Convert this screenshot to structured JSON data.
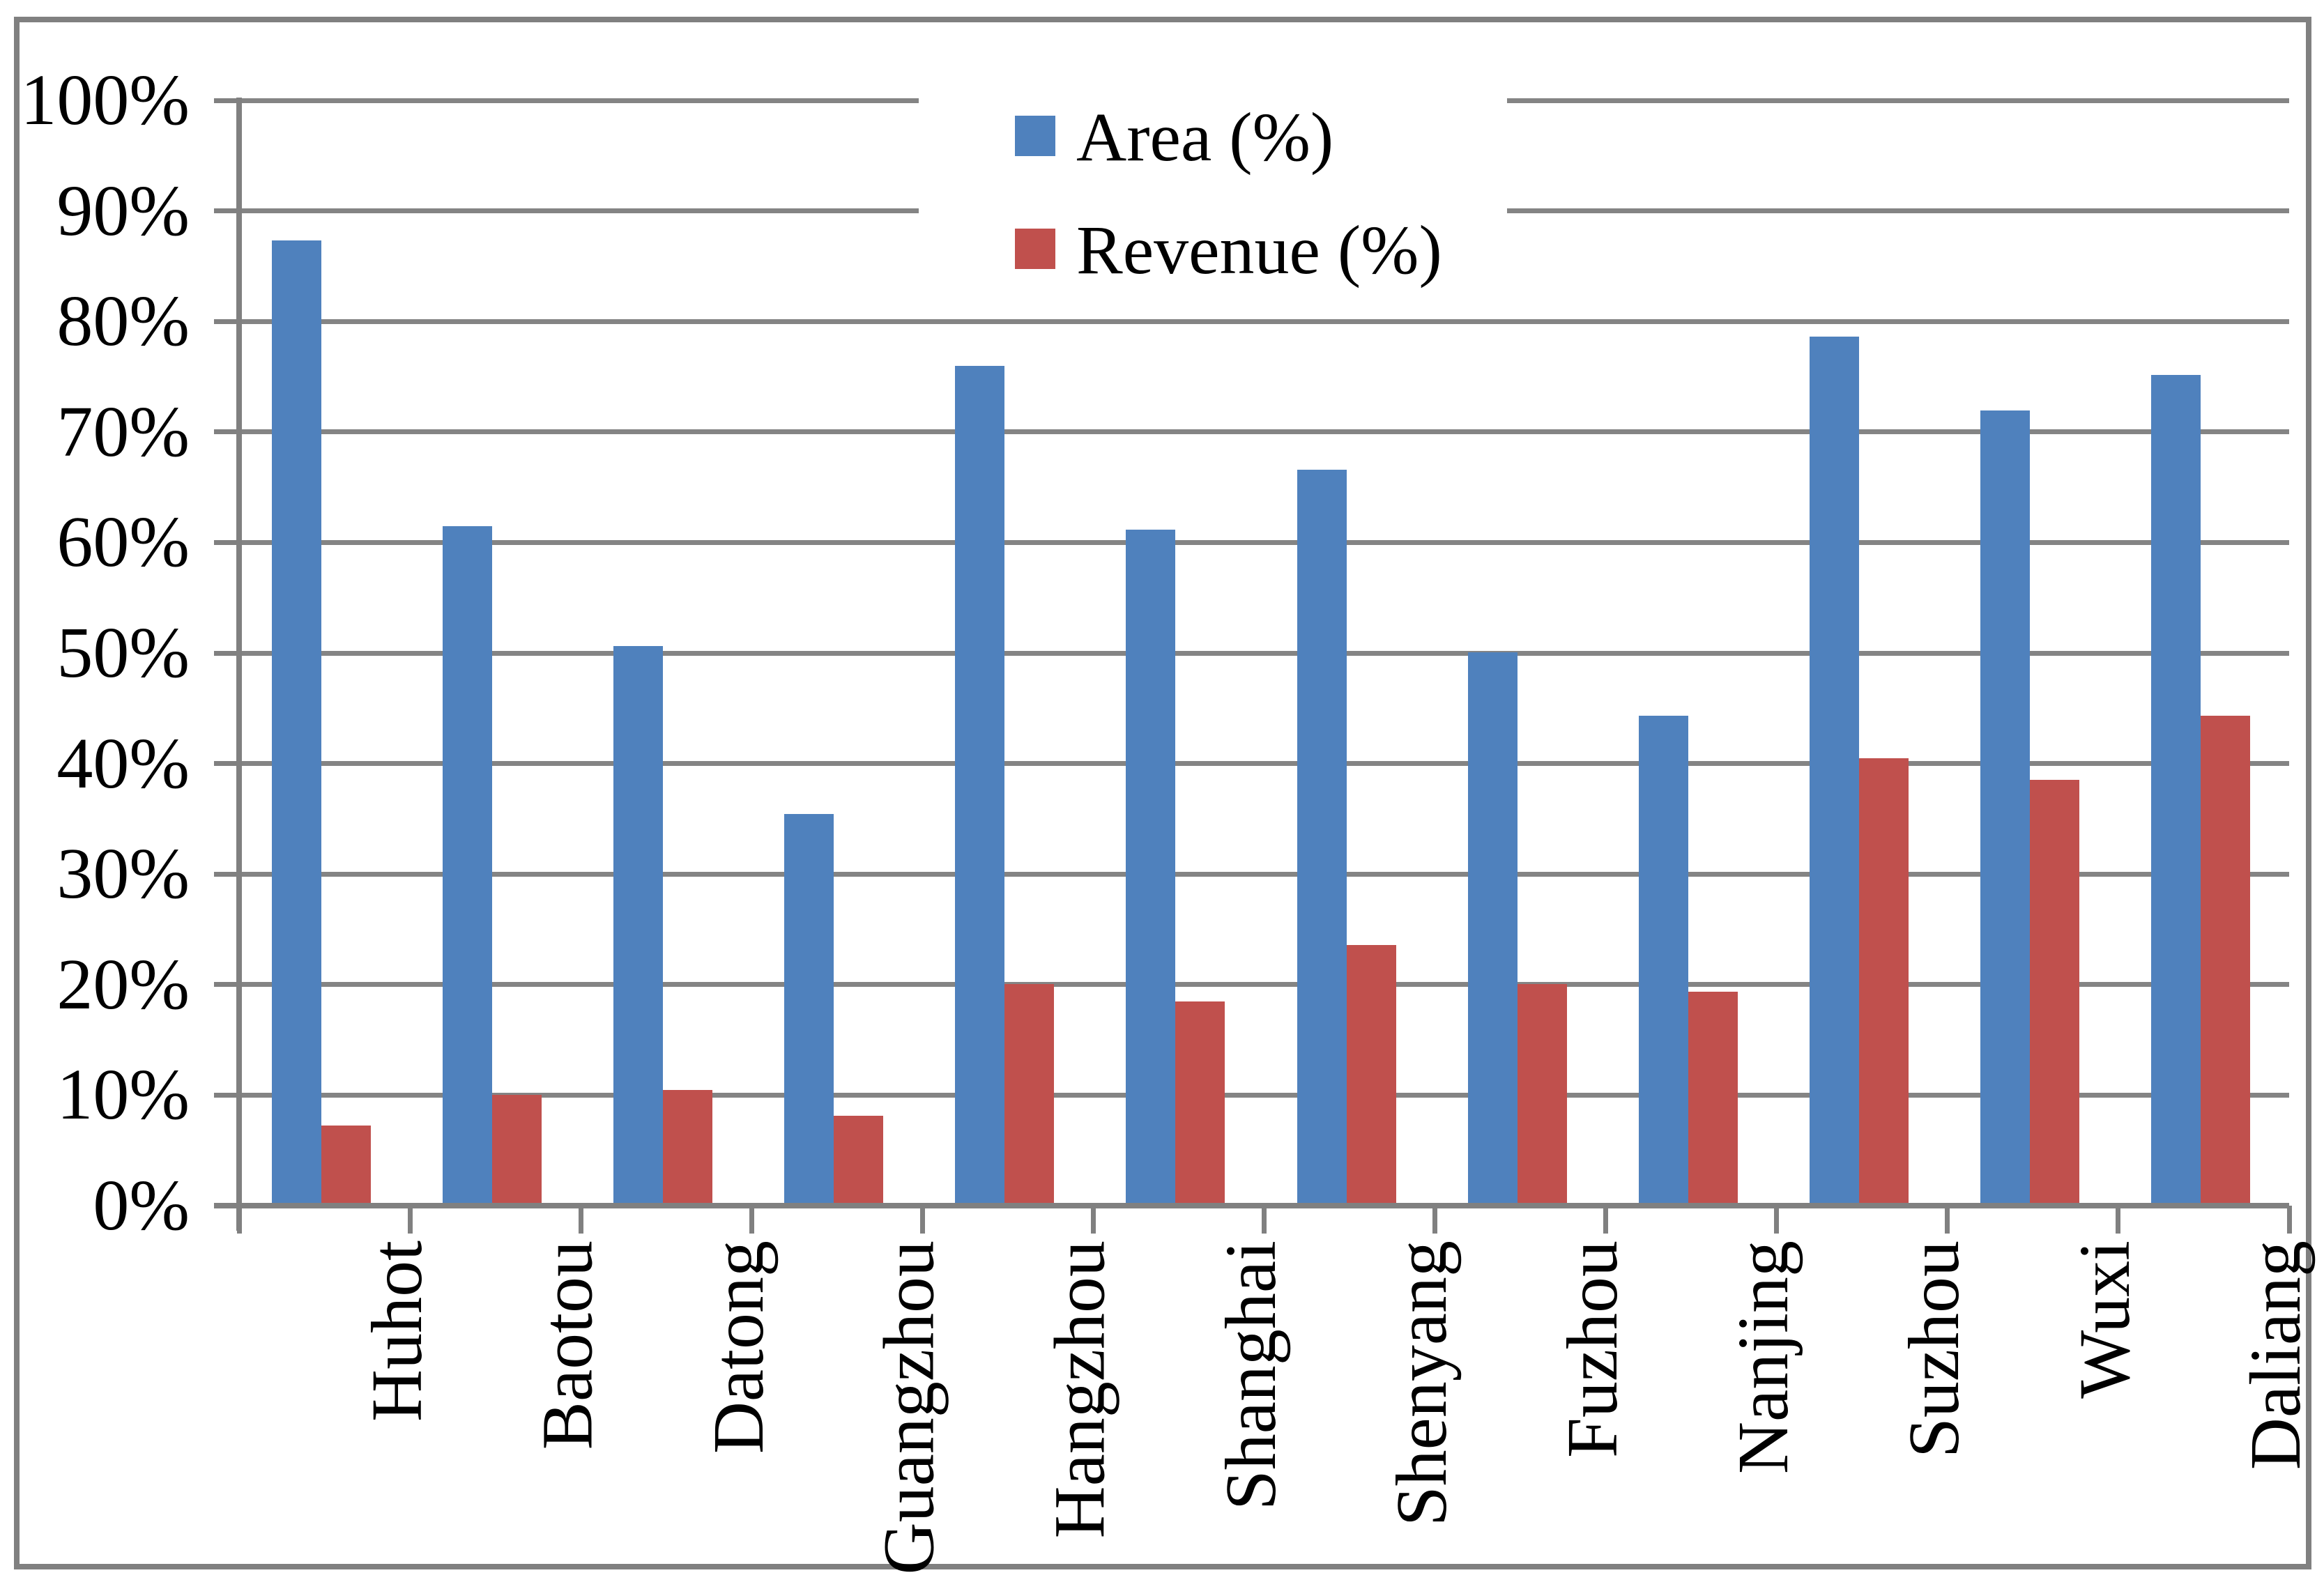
{
  "chart_data": {
    "type": "bar",
    "title": "",
    "xlabel": "",
    "ylabel": "",
    "categories": [
      "Huhot",
      "Baotou",
      "Datong",
      "Guangzhou",
      "Hangzhou",
      "Shanghai",
      "Shenyang",
      "Fuzhou",
      "Nanjing",
      "Suzhou",
      "Wuxi",
      "Daliang"
    ],
    "series": [
      {
        "name": "Area (%)",
        "color": "#4F81BD",
        "values": [
          87.1,
          61.2,
          50.4,
          35.2,
          75.7,
          60.9,
          66.3,
          49.8,
          44.1,
          78.4,
          71.7,
          74.9
        ]
      },
      {
        "name": "Revenue (%)",
        "color": "#C0504D",
        "values": [
          7.0,
          9.8,
          10.2,
          7.9,
          19.8,
          18.2,
          23.3,
          19.8,
          19.1,
          40.2,
          38.3,
          44.1
        ]
      }
    ],
    "ylim": [
      0,
      100
    ],
    "ytick_step": 10,
    "ytick_labels": [
      "0%",
      "10%",
      "20%",
      "30%",
      "40%",
      "50%",
      "60%",
      "70%",
      "80%",
      "90%",
      "100%"
    ],
    "grid": true,
    "legend_position": "top-center",
    "x_label_rotation_deg": 90
  },
  "colors": {
    "bar_area": "#4F81BD",
    "bar_revenue": "#C0504D",
    "gridline": "#848484",
    "axis": "#808080",
    "border": "#808080",
    "text": "#000000",
    "background": "#ffffff"
  }
}
